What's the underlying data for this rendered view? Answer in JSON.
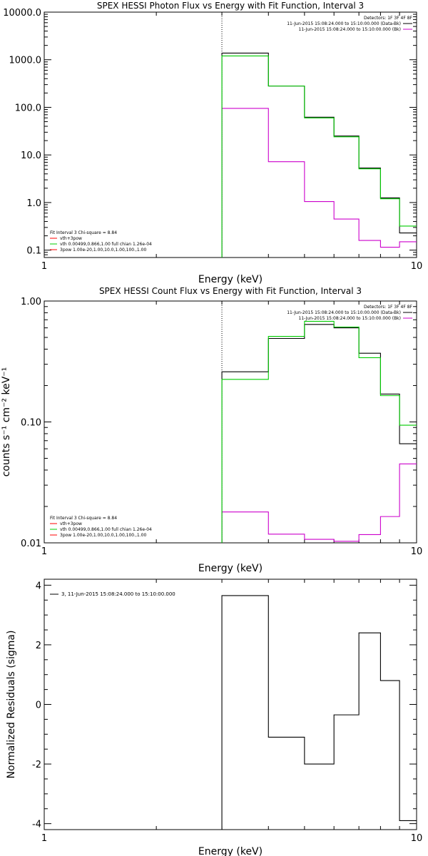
{
  "colors": {
    "data": "#000000",
    "fit_total": "#ff0000",
    "vth": "#00cc00",
    "bk": "#cc00cc"
  },
  "chart_data": [
    {
      "type": "line",
      "title": "SPEX HESSI Photon Flux vs Energy with Fit Function, Interval 3",
      "xlabel": "Energy (keV)",
      "ylabel": "",
      "xscale": "log",
      "yscale": "log",
      "xlim": [
        1,
        10
      ],
      "ylim": [
        0.07,
        10000
      ],
      "x_ticks": [
        {
          "v": 1,
          "label": "1"
        },
        {
          "v": 10,
          "label": "10"
        }
      ],
      "y_ticks": [
        {
          "v": 0.1,
          "label": "0.1"
        },
        {
          "v": 1,
          "label": "1.0"
        },
        {
          "v": 10,
          "label": "10.0"
        },
        {
          "v": 100,
          "label": "100.0"
        },
        {
          "v": 1000,
          "label": "1000.0"
        },
        {
          "v": 10000,
          "label": "10000.0"
        }
      ],
      "vline_x": 3,
      "edges": [
        3,
        4,
        5,
        6,
        7,
        8,
        9,
        10
      ],
      "series": [
        {
          "key": "data",
          "color": "#000000",
          "values": [
            1380,
            280,
            62,
            25,
            5.3,
            1.25,
            0.23
          ]
        },
        {
          "key": "vth",
          "color": "#00cc00",
          "values": [
            1200,
            280,
            60,
            24,
            5.1,
            1.2,
            0.32
          ]
        },
        {
          "key": "bk",
          "color": "#cc00cc",
          "values": [
            95,
            7.2,
            1.05,
            0.45,
            0.16,
            0.115,
            0.15
          ]
        }
      ],
      "legend_tr": {
        "title": "Detectors: 1F 3F 4F 8F",
        "entries": [
          {
            "text": "11-Jun-2015 15:08:24.000 to 15:10:00.000 (Data-Bk)",
            "color": "#000000"
          },
          {
            "text": "11-Jun-2015 15:08:24.000 to 15:10:00.000 (Bk)",
            "color": "#cc00cc"
          }
        ]
      },
      "legend_bl": {
        "title": "Fit Interval 3   Chi-square = 8.84",
        "entries": [
          {
            "text": "vth+3pow",
            "color": "#ff0000"
          },
          {
            "text": "vth 0.00499,0.866,1.00  full chian 1.26e-04",
            "color": "#00cc00"
          },
          {
            "text": "3pow 1.00e-20,1.00,10.0,1.00,100.,1.00",
            "color": "#ff0000"
          }
        ]
      }
    },
    {
      "type": "line",
      "title": "SPEX HESSI Count Flux vs Energy with Fit Function, Interval 3",
      "xlabel": "Energy (keV)",
      "ylabel": "counts s⁻¹ cm⁻² keV⁻¹",
      "xscale": "log",
      "yscale": "log",
      "xlim": [
        1,
        10
      ],
      "ylim": [
        0.01,
        1.0
      ],
      "x_ticks": [
        {
          "v": 1,
          "label": "1"
        },
        {
          "v": 10,
          "label": "10"
        }
      ],
      "y_ticks": [
        {
          "v": 0.01,
          "label": "0.01"
        },
        {
          "v": 0.1,
          "label": "0.10"
        },
        {
          "v": 1,
          "label": "1.00"
        }
      ],
      "vline_x": 3,
      "edges": [
        3,
        4,
        5,
        6,
        7,
        8,
        9,
        10
      ],
      "series": [
        {
          "key": "data",
          "color": "#000000",
          "values": [
            0.26,
            0.49,
            0.64,
            0.6,
            0.37,
            0.17,
            0.066
          ]
        },
        {
          "key": "vth",
          "color": "#00cc00",
          "values": [
            0.225,
            0.51,
            0.68,
            0.61,
            0.34,
            0.165,
            0.094
          ]
        },
        {
          "key": "bk",
          "color": "#cc00cc",
          "values": [
            0.018,
            0.0118,
            0.0107,
            0.0103,
            0.0117,
            0.0165,
            0.045
          ]
        }
      ],
      "legend_tr": {
        "title": "Detectors: 1F 3F 4F 8F",
        "entries": [
          {
            "text": "11-Jun-2015 15:08:24.000 to 15:10:00.000 (Data-Bk)",
            "color": "#000000"
          },
          {
            "text": "11-Jun-2015 15:08:24.000 to 15:10:00.000 (Bk)",
            "color": "#cc00cc"
          }
        ]
      },
      "legend_bl": {
        "title": "Fit Interval 3   Chi-square = 8.84",
        "entries": [
          {
            "text": "vth+3pow",
            "color": "#ff0000"
          },
          {
            "text": "vth 0.00499,0.866,1.00  full chian 1.26e-04",
            "color": "#00cc00"
          },
          {
            "text": "3pow 1.00e-20,1.00,10.0,1.00,100.,1.00",
            "color": "#ff0000"
          }
        ]
      }
    },
    {
      "type": "line",
      "title": "",
      "xlabel": "Energy (keV)",
      "ylabel": "Normalized Residuals (sigma)",
      "xscale": "log",
      "yscale": "linear",
      "xlim": [
        1,
        10
      ],
      "ylim": [
        -4.2,
        4.2
      ],
      "x_ticks": [
        {
          "v": 1,
          "label": "1"
        },
        {
          "v": 10,
          "label": "10"
        }
      ],
      "y_ticks": [
        {
          "v": -4,
          "label": "-4"
        },
        {
          "v": -2,
          "label": "-2"
        },
        {
          "v": 0,
          "label": "0"
        },
        {
          "v": 2,
          "label": "2"
        },
        {
          "v": 4,
          "label": "4"
        }
      ],
      "edges": [
        3,
        4,
        5,
        6,
        7,
        8,
        9,
        10
      ],
      "series": [
        {
          "key": "residuals",
          "color": "#000000",
          "values": [
            3.65,
            -1.1,
            -2.0,
            -0.35,
            2.4,
            0.8,
            -3.9
          ]
        }
      ],
      "legend_tl": {
        "entries": [
          {
            "text": "3, 11-Jun-2015 15:08:24.000 to 15:10:00.000",
            "color": "#000000"
          }
        ]
      }
    }
  ]
}
